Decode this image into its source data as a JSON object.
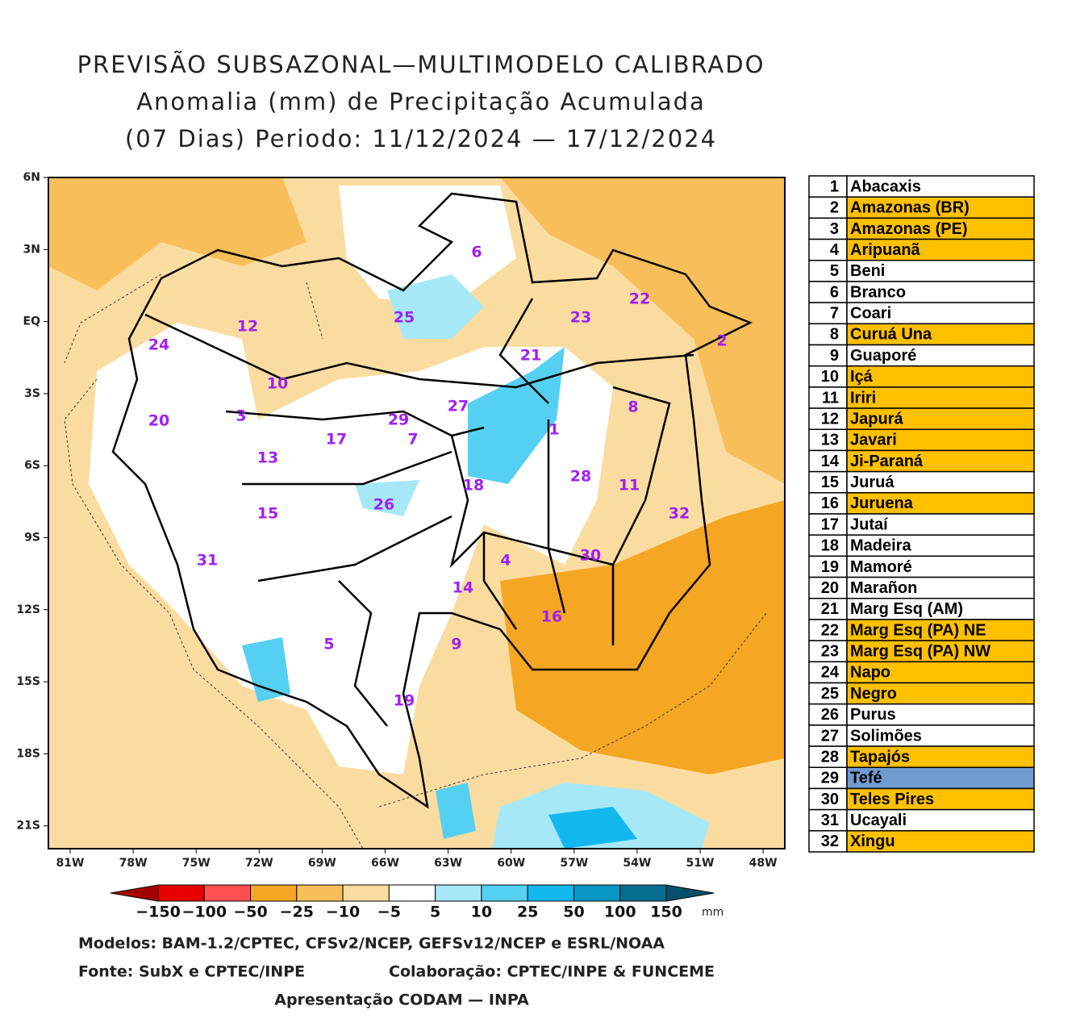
{
  "header": {
    "lines": [
      "PREVISÃO SUBSAZONAL—MULTIMODELO CALIBRADO",
      "Anomalia (mm) de Precipitação Acumulada",
      "(07 Dias) Periodo: 11/12/2024 — 17/12/2024"
    ]
  },
  "map": {
    "lat_labels": [
      "6N",
      "3N",
      "EQ",
      "3S",
      "6S",
      "9S",
      "12S",
      "15S",
      "18S",
      "21S"
    ],
    "lon_labels": [
      "81W",
      "78W",
      "75W",
      "72W",
      "69W",
      "66W",
      "63W",
      "60W",
      "57W",
      "54W",
      "51W",
      "48W"
    ],
    "basin_labels": [
      "1",
      "2",
      "3",
      "4",
      "5",
      "6",
      "7",
      "8",
      "9",
      "10",
      "11",
      "12",
      "13",
      "14",
      "15",
      "16",
      "17",
      "18",
      "19",
      "20",
      "21",
      "22",
      "23",
      "24",
      "25",
      "26",
      "27",
      "28",
      "29",
      "30",
      "31",
      "32"
    ]
  },
  "colorbar": {
    "labels": [
      "−150",
      "−100",
      "−50",
      "−25",
      "−10",
      "−5",
      "5",
      "10",
      "25",
      "50",
      "100",
      "150"
    ],
    "unit": "mm",
    "colors": [
      "#a50000",
      "#e60000",
      "#ff5050",
      "#f5a623",
      "#f8be5a",
      "#fbdca0",
      "#ffffff",
      "#a6e8f8",
      "#55d0f2",
      "#12b8ee",
      "#0896c4",
      "#066f8f",
      "#04506a"
    ]
  },
  "table": {
    "rows": [
      {
        "number": "1",
        "name": "Abacaxis",
        "color": "#ffffff"
      },
      {
        "number": "2",
        "name": "Amazonas (BR)",
        "color": "#ffc000"
      },
      {
        "number": "3",
        "name": "Amazonas (PE)",
        "color": "#ffc000"
      },
      {
        "number": "4",
        "name": "Aripuanã",
        "color": "#ffc000"
      },
      {
        "number": "5",
        "name": "Beni",
        "color": "#ffffff"
      },
      {
        "number": "6",
        "name": "Branco",
        "color": "#ffffff"
      },
      {
        "number": "7",
        "name": "Coari",
        "color": "#ffffff"
      },
      {
        "number": "8",
        "name": "Curuá Una",
        "color": "#ffc000"
      },
      {
        "number": "9",
        "name": "Guaporé",
        "color": "#ffffff"
      },
      {
        "number": "10",
        "name": "Içá",
        "color": "#ffc000"
      },
      {
        "number": "11",
        "name": "Iriri",
        "color": "#ffc000"
      },
      {
        "number": "12",
        "name": "Japurá",
        "color": "#ffc000"
      },
      {
        "number": "13",
        "name": "Javari",
        "color": "#ffc000"
      },
      {
        "number": "14",
        "name": "Ji-Paraná",
        "color": "#ffc000"
      },
      {
        "number": "15",
        "name": "Juruá",
        "color": "#ffffff"
      },
      {
        "number": "16",
        "name": "Juruena",
        "color": "#ffc000"
      },
      {
        "number": "17",
        "name": "Jutaí",
        "color": "#ffffff"
      },
      {
        "number": "18",
        "name": "Madeira",
        "color": "#ffffff"
      },
      {
        "number": "19",
        "name": "Mamoré",
        "color": "#ffffff"
      },
      {
        "number": "20",
        "name": "Marañon",
        "color": "#ffffff"
      },
      {
        "number": "21",
        "name": "Marg Esq (AM)",
        "color": "#ffffff"
      },
      {
        "number": "22",
        "name": "Marg Esq (PA) NE",
        "color": "#ffc000"
      },
      {
        "number": "23",
        "name": "Marg Esq (PA) NW",
        "color": "#ffc000"
      },
      {
        "number": "24",
        "name": "Napo",
        "color": "#ffc000"
      },
      {
        "number": "25",
        "name": "Negro",
        "color": "#ffc000"
      },
      {
        "number": "26",
        "name": "Purus",
        "color": "#ffffff"
      },
      {
        "number": "27",
        "name": "Solimões",
        "color": "#ffffff"
      },
      {
        "number": "28",
        "name": "Tapajós",
        "color": "#ffc000"
      },
      {
        "number": "29",
        "name": "Tefé",
        "color": "#6f9bd1"
      },
      {
        "number": "30",
        "name": "Teles Pires",
        "color": "#ffc000"
      },
      {
        "number": "31",
        "name": "Ucayali",
        "color": "#ffffff"
      },
      {
        "number": "32",
        "name": "Xingu",
        "color": "#ffc000"
      }
    ]
  },
  "footer": {
    "models": "Modelos: BAM-1.2/CPTEC, CFSv2/NCEP, GEFSv12/NCEP e ESRL/NOAA",
    "source": "Fonte: SubX e CPTEC/INPE",
    "collab": "Colaboração: CPTEC/INPE & FUNCEME",
    "presentation": "Apresentação CODAM — INPA"
  }
}
